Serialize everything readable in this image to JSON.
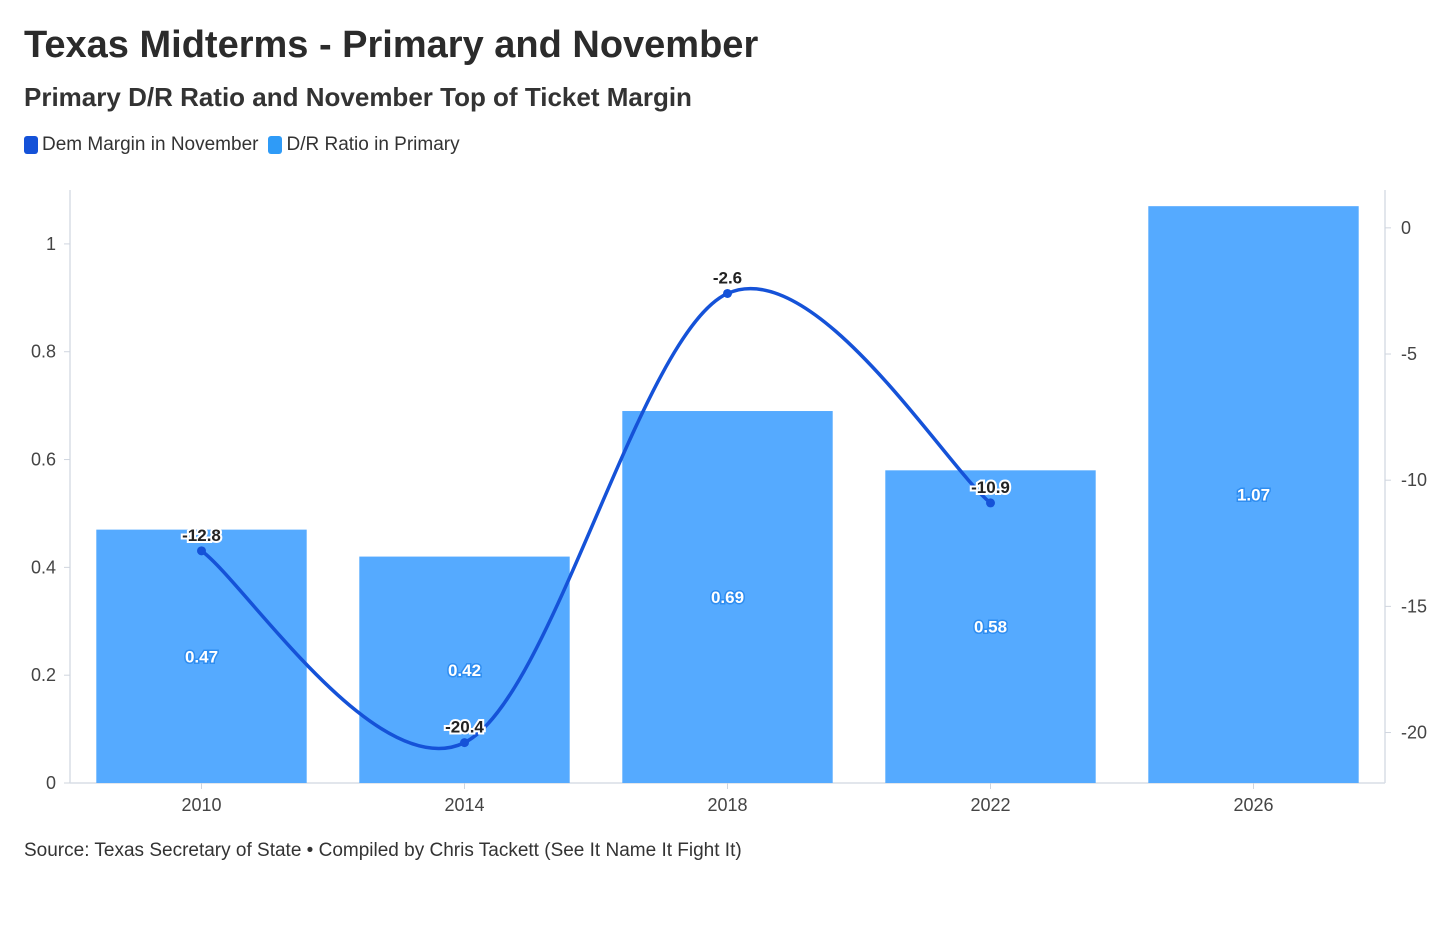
{
  "chart_data": {
    "type": "bar",
    "title": "Texas Midterms - Primary and November",
    "subtitle": "Primary D/R Ratio and November Top of Ticket Margin",
    "categories": [
      "2010",
      "2014",
      "2018",
      "2022",
      "2026"
    ],
    "series": [
      {
        "name": "D/R Ratio in Primary",
        "type": "bar",
        "axis": "left",
        "color": "#55aaff",
        "values": [
          0.47,
          0.42,
          0.69,
          0.58,
          1.07
        ],
        "labels": [
          "0.47",
          "0.42",
          "0.69",
          "0.58",
          "1.07"
        ]
      },
      {
        "name": "Dem Margin in November",
        "type": "line",
        "axis": "right",
        "color": "#1552d8",
        "values": [
          -12.8,
          -20.4,
          -2.6,
          -10.9,
          null
        ],
        "labels": [
          "-12.8",
          "-20.4",
          "-2.6",
          "-10.9",
          ""
        ]
      }
    ],
    "left_axis": {
      "ylim": [
        0,
        1.1
      ],
      "ticks": [
        0,
        0.2,
        0.4,
        0.6,
        0.8,
        1
      ],
      "tick_labels": [
        "0",
        "0.2",
        "0.4",
        "0.6",
        "0.8",
        "1"
      ]
    },
    "right_axis": {
      "ylim": [
        -22,
        1.5
      ],
      "ticks": [
        0,
        -5,
        -10,
        -15,
        -20
      ],
      "tick_labels": [
        "0",
        "-5",
        "-10",
        "-15",
        "-20"
      ]
    },
    "legend": {
      "position": "top-left",
      "items": [
        {
          "label": "Dem Margin in November",
          "color": "#1552d8"
        },
        {
          "label": "D/R Ratio in Primary",
          "color": "#2f9bf7"
        }
      ]
    },
    "source": "Source: Texas Secretary of State • Compiled by Chris Tackett (See It Name It Fight It)"
  }
}
